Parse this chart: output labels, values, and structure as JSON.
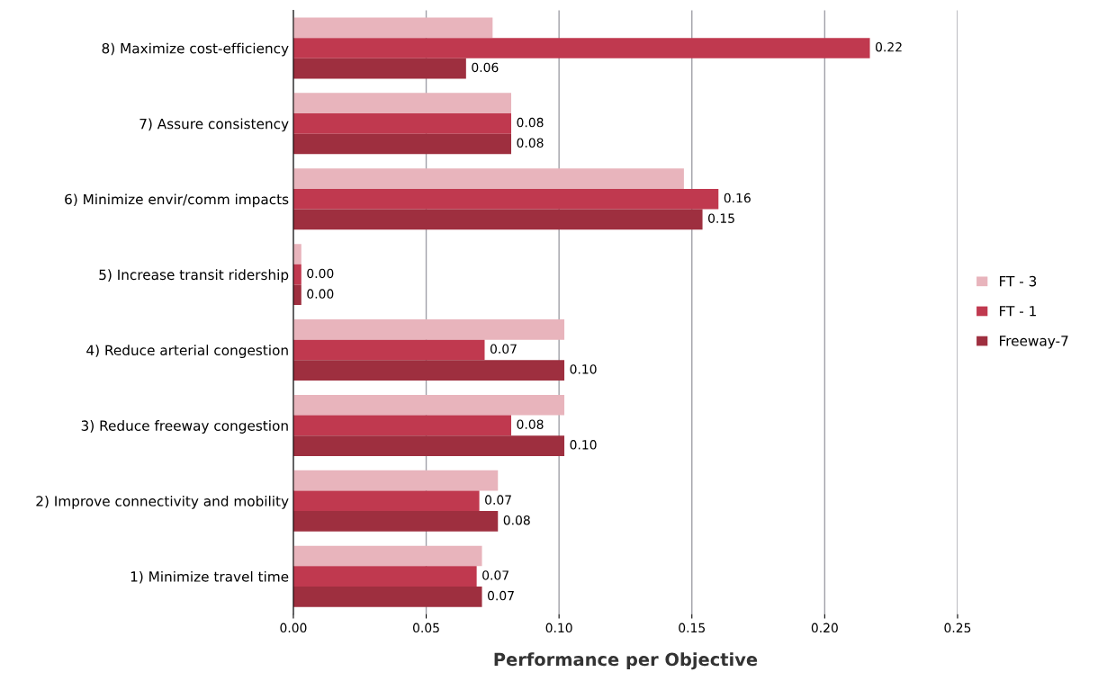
{
  "chart_data": {
    "type": "bar",
    "orientation": "horizontal",
    "xlabel": "Performance per Objective",
    "categories": [
      "8) Maximize cost-efficiency",
      "7) Assure consistency",
      "6) Minimize envir/comm impacts",
      "5) Increase transit ridership",
      "4) Reduce arterial congestion",
      "3) Reduce freeway congestion",
      "2) Improve connectivity and mobility",
      "1) Minimize travel time"
    ],
    "series": [
      {
        "name": "FT - 3",
        "color": "#e8b4bc",
        "values": [
          0.075,
          0.082,
          0.147,
          0.003,
          0.102,
          0.102,
          0.077,
          0.071
        ]
      },
      {
        "name": "FT - 1",
        "color": "#c0394f",
        "values": [
          0.217,
          0.082,
          0.16,
          0.003,
          0.072,
          0.082,
          0.07,
          0.069
        ],
        "value_labels": [
          "0.22",
          "0.08",
          "0.16",
          "0.00",
          "0.07",
          "0.08",
          "0.07",
          "0.07"
        ]
      },
      {
        "name": "Freeway-7",
        "color": "#9e2f3f",
        "values": [
          0.065,
          0.082,
          0.154,
          0.003,
          0.102,
          0.102,
          0.077,
          0.071
        ],
        "value_labels": [
          "0.06",
          "0.08",
          "0.15",
          "0.00",
          "0.10",
          "0.10",
          "0.08",
          "0.07"
        ]
      }
    ],
    "xlim": [
      0,
      0.25
    ],
    "xticks": [
      {
        "value": 0,
        "label": "0.00"
      },
      {
        "value": 0.05,
        "label": "0.05"
      },
      {
        "value": 0.1,
        "label": "0.10"
      },
      {
        "value": 0.15,
        "label": "0.15"
      },
      {
        "value": 0.2,
        "label": "0.20"
      },
      {
        "value": 0.25,
        "label": "0.25"
      }
    ],
    "grid": "x",
    "legend": "right"
  }
}
